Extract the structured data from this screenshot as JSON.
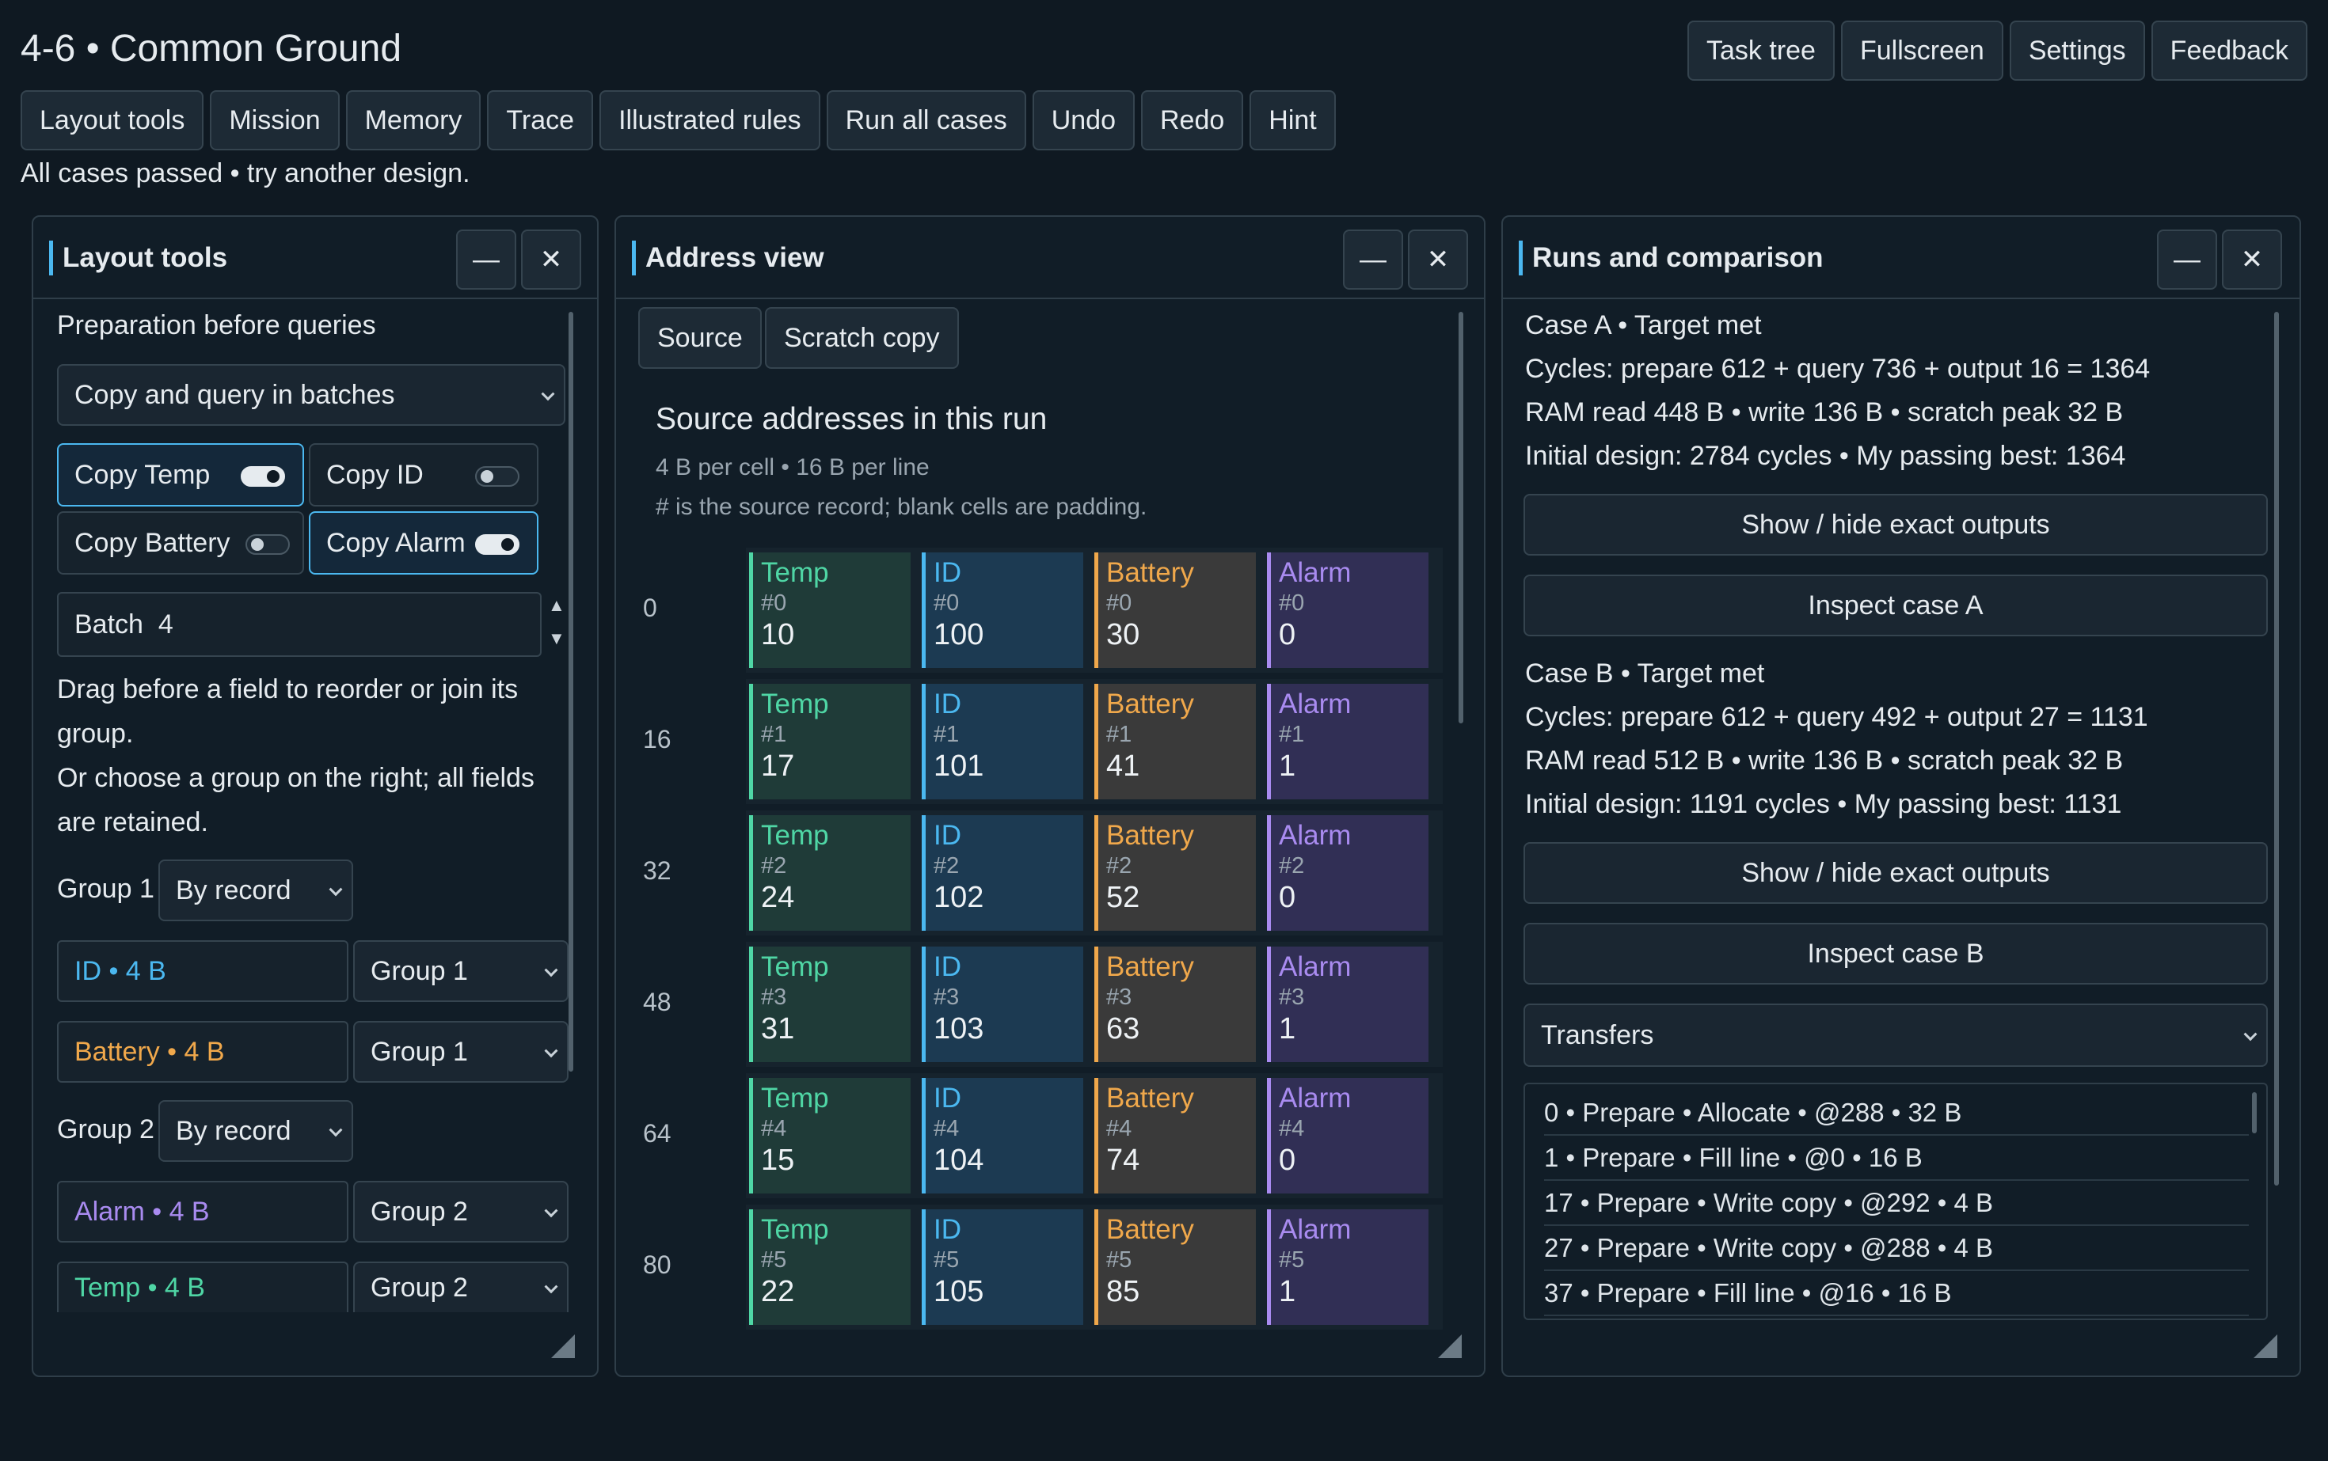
{
  "header": {
    "title": "4-6  •  Common Ground",
    "right_buttons": [
      "Task tree",
      "Fullscreen",
      "Settings",
      "Feedback"
    ],
    "toolbar": [
      "Layout tools",
      "Mission",
      "Memory",
      "Trace",
      "Illustrated rules",
      "Run all cases",
      "Undo",
      "Redo",
      "Hint"
    ],
    "status": "All cases passed  •  try another design."
  },
  "window_controls": {
    "minimize": "—",
    "close": "✕"
  },
  "layout_panel": {
    "title": "Layout tools",
    "section": "Preparation before queries",
    "mode": "Copy and query in batches",
    "toggles": [
      {
        "label": "Copy Temp",
        "on": true
      },
      {
        "label": "Copy ID",
        "on": false
      },
      {
        "label": "Copy Battery",
        "on": false
      },
      {
        "label": "Copy Alarm",
        "on": true
      }
    ],
    "batch_label": "Batch",
    "batch_value": "4",
    "help1": "Drag before a field to reorder or join its",
    "help2": "group.",
    "help3": "Or choose a group on the right; all fields",
    "help4": "are retained.",
    "groups": [
      {
        "label": "Group 1",
        "order": "By record",
        "fields": [
          {
            "name": "ID  •  4 B",
            "color": "#4bb8f0",
            "group": "Group 1"
          },
          {
            "name": "Battery  •  4 B",
            "color": "#f0a84b",
            "group": "Group 1"
          }
        ]
      },
      {
        "label": "Group 2",
        "order": "By record",
        "fields": [
          {
            "name": "Alarm  •  4 B",
            "color": "#a98bf0",
            "group": "Group 2"
          },
          {
            "name": "Temp  •  4 B",
            "color": "#4fd6a5",
            "group": "Group 2"
          }
        ]
      }
    ]
  },
  "address_panel": {
    "title": "Address view",
    "tabs": [
      "Source",
      "Scratch copy"
    ],
    "heading": "Source addresses in this run",
    "sub1": "4 B per cell  •  16 B per line",
    "sub2": "# is the source record; blank cells are padding.",
    "field_colors": {
      "Temp": "#4fd6a5",
      "ID": "#4bb8f0",
      "Battery": "#f0a84b",
      "Alarm": "#a98bf0"
    },
    "rows": [
      {
        "addr": "0",
        "cells": [
          {
            "n": "Temp",
            "i": "#0",
            "v": "10"
          },
          {
            "n": "ID",
            "i": "#0",
            "v": "100"
          },
          {
            "n": "Battery",
            "i": "#0",
            "v": "30"
          },
          {
            "n": "Alarm",
            "i": "#0",
            "v": "0"
          }
        ]
      },
      {
        "addr": "16",
        "cells": [
          {
            "n": "Temp",
            "i": "#1",
            "v": "17"
          },
          {
            "n": "ID",
            "i": "#1",
            "v": "101"
          },
          {
            "n": "Battery",
            "i": "#1",
            "v": "41"
          },
          {
            "n": "Alarm",
            "i": "#1",
            "v": "1"
          }
        ]
      },
      {
        "addr": "32",
        "cells": [
          {
            "n": "Temp",
            "i": "#2",
            "v": "24"
          },
          {
            "n": "ID",
            "i": "#2",
            "v": "102"
          },
          {
            "n": "Battery",
            "i": "#2",
            "v": "52"
          },
          {
            "n": "Alarm",
            "i": "#2",
            "v": "0"
          }
        ]
      },
      {
        "addr": "48",
        "cells": [
          {
            "n": "Temp",
            "i": "#3",
            "v": "31"
          },
          {
            "n": "ID",
            "i": "#3",
            "v": "103"
          },
          {
            "n": "Battery",
            "i": "#3",
            "v": "63"
          },
          {
            "n": "Alarm",
            "i": "#3",
            "v": "1"
          }
        ]
      },
      {
        "addr": "64",
        "cells": [
          {
            "n": "Temp",
            "i": "#4",
            "v": "15"
          },
          {
            "n": "ID",
            "i": "#4",
            "v": "104"
          },
          {
            "n": "Battery",
            "i": "#4",
            "v": "74"
          },
          {
            "n": "Alarm",
            "i": "#4",
            "v": "0"
          }
        ]
      },
      {
        "addr": "80",
        "cells": [
          {
            "n": "Temp",
            "i": "#5",
            "v": "22"
          },
          {
            "n": "ID",
            "i": "#5",
            "v": "105"
          },
          {
            "n": "Battery",
            "i": "#5",
            "v": "85"
          },
          {
            "n": "Alarm",
            "i": "#5",
            "v": "1"
          }
        ]
      }
    ]
  },
  "runs_panel": {
    "title": "Runs and comparison",
    "case_a": {
      "head": "Case A  •  Target met",
      "cycles": "Cycles: prepare 612 + query 736 + output 16 = 1364",
      "ram": "RAM read 448 B  •  write 136 B  •  scratch peak 32 B",
      "initial": "Initial design: 2784 cycles  •  My passing best: 1364",
      "show": "Show / hide exact outputs",
      "inspect": "Inspect case A"
    },
    "case_b": {
      "head": "Case B  •  Target met",
      "cycles": "Cycles: prepare 612 + query 492 + output 27 = 1131",
      "ram": "RAM read 512 B  •  write 136 B  •  scratch peak 32 B",
      "initial": "Initial design: 1191 cycles  •  My passing best: 1131",
      "show": "Show / hide exact outputs",
      "inspect": "Inspect case B"
    },
    "transfers_label": "Transfers",
    "transfers": [
      "0  •  Prepare  •  Allocate  •  @288  •  32 B",
      "1  •  Prepare  •  Fill line  •  @0  •  16 B",
      "17  •  Prepare  •  Write copy  •  @292  •  4 B",
      "27  •  Prepare  •  Write copy  •  @288  •  4 B",
      "37  •  Prepare  •  Fill line  •  @16  •  16 B"
    ]
  }
}
